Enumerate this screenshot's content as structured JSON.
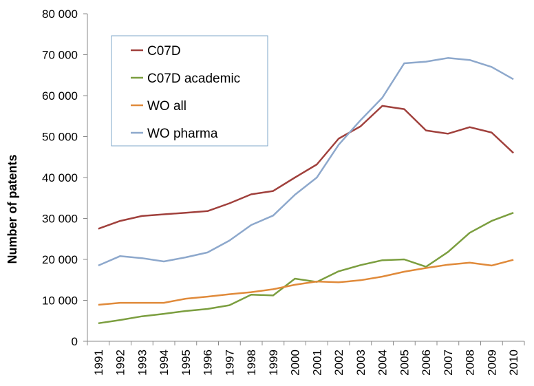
{
  "chart_data": {
    "type": "line",
    "xlabel": "",
    "ylabel": "Number of patents",
    "ylim": [
      0,
      80000
    ],
    "yticks": [
      0,
      10000,
      20000,
      30000,
      40000,
      50000,
      60000,
      70000,
      80000
    ],
    "ytick_labels": [
      "0",
      "10 000",
      "20 000",
      "30 000",
      "40 000",
      "50 000",
      "60 000",
      "70 000",
      "80 000"
    ],
    "categories": [
      "1991",
      "1992",
      "1993",
      "1994",
      "1995",
      "1996",
      "1997",
      "1998",
      "1999",
      "2000",
      "2001",
      "2002",
      "2003",
      "2004",
      "2005",
      "2006",
      "2007",
      "2008",
      "2009",
      "2010"
    ],
    "grid": false,
    "legend_position": "top-left",
    "series": [
      {
        "name": "C07D",
        "color": "#A0403C",
        "values": [
          27500,
          29400,
          30600,
          31000,
          31400,
          31800,
          33700,
          35900,
          36700,
          40000,
          43200,
          49500,
          52500,
          57500,
          56700,
          51500,
          50700,
          52300,
          51000,
          46000
        ]
      },
      {
        "name": "C07D academic",
        "color": "#7B9E3F",
        "values": [
          4400,
          5200,
          6100,
          6700,
          7400,
          7900,
          8800,
          11400,
          11200,
          15300,
          14500,
          17100,
          18600,
          19800,
          20000,
          18200,
          21800,
          26500,
          29400,
          31400
        ]
      },
      {
        "name": "WO all",
        "color": "#E08A3A",
        "values": [
          8900,
          9400,
          9400,
          9400,
          10400,
          10900,
          11500,
          12000,
          12700,
          13800,
          14600,
          14400,
          14900,
          15800,
          17000,
          17900,
          18700,
          19200,
          18500,
          19900
        ]
      },
      {
        "name": "WO pharma",
        "color": "#8DA8CC",
        "values": [
          18500,
          20800,
          20300,
          19500,
          20500,
          21700,
          24600,
          28400,
          30700,
          35800,
          40000,
          48000,
          54000,
          59500,
          67900,
          68300,
          69200,
          68700,
          67000,
          64000
        ]
      }
    ]
  }
}
